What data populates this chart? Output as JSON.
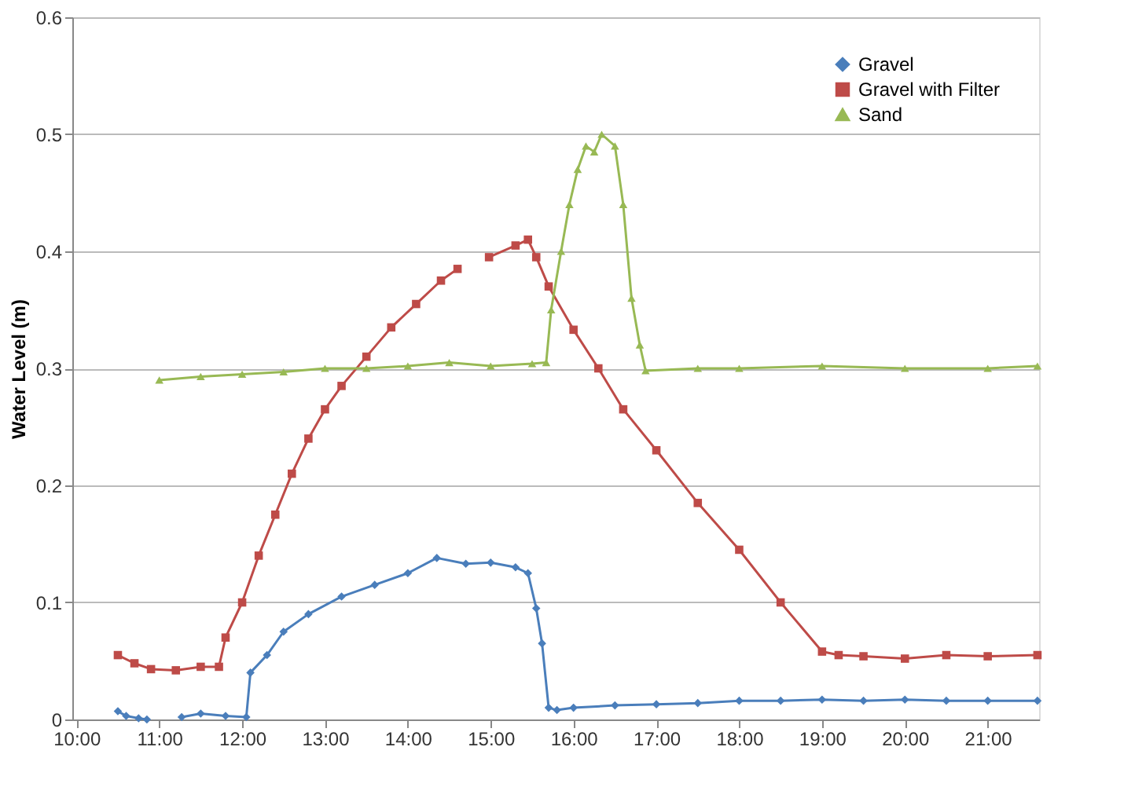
{
  "chart_data": {
    "type": "line",
    "ylabel": "Water Level (m)",
    "xlim": [
      9.95,
      21.62
    ],
    "xticks": [
      {
        "value": 10,
        "label": "10:00"
      },
      {
        "value": 11,
        "label": "11:00"
      },
      {
        "value": 12,
        "label": "12:00"
      },
      {
        "value": 13,
        "label": "13:00"
      },
      {
        "value": 14,
        "label": "14:00"
      },
      {
        "value": 15,
        "label": "15:00"
      },
      {
        "value": 16,
        "label": "16:00"
      },
      {
        "value": 17,
        "label": "17:00"
      },
      {
        "value": 18,
        "label": "18:00"
      },
      {
        "value": 19,
        "label": "19:00"
      },
      {
        "value": 20,
        "label": "20:00"
      },
      {
        "value": 21,
        "label": "21:00"
      }
    ],
    "ylim": [
      0,
      0.6
    ],
    "yticks": [
      0,
      0.1,
      0.2,
      0.3,
      0.4,
      0.5,
      0.6
    ],
    "grid": "y",
    "legend": "top right",
    "line_style": "solid",
    "series": [
      {
        "name": "Gravel",
        "color": "#4a7ebb",
        "marker": "diamond",
        "x": [
          10.5,
          10.6,
          10.75,
          10.85,
          11.05,
          11.27,
          11.5,
          11.8,
          12.05,
          12.1,
          12.3,
          12.5,
          12.8,
          13.2,
          13.6,
          14.0,
          14.35,
          14.7,
          15.0,
          15.3,
          15.45,
          15.55,
          15.62,
          15.7,
          15.8,
          16.0,
          16.5,
          17.0,
          17.5,
          18.0,
          18.5,
          19.0,
          19.5,
          20.0,
          20.5,
          21.0,
          21.6
        ],
        "values": [
          0.007,
          0.003,
          0.001,
          0.0,
          null,
          0.002,
          0.005,
          0.003,
          0.002,
          0.04,
          0.055,
          0.075,
          0.09,
          0.105,
          0.115,
          0.125,
          0.138,
          0.133,
          0.134,
          0.13,
          0.125,
          0.095,
          0.065,
          0.01,
          0.008,
          0.01,
          0.012,
          0.013,
          0.014,
          0.016,
          0.016,
          0.017,
          0.016,
          0.017,
          0.016,
          0.016,
          0.016
        ]
      },
      {
        "name": "Gravel with Filter",
        "color": "#be4b48",
        "marker": "square",
        "x": [
          10.5,
          10.7,
          10.9,
          11.2,
          11.5,
          11.72,
          11.8,
          12.0,
          12.2,
          12.4,
          12.6,
          12.8,
          13.0,
          13.2,
          13.5,
          13.8,
          14.1,
          14.4,
          14.6,
          14.8,
          14.98,
          15.3,
          15.45,
          15.55,
          15.7,
          16.0,
          16.3,
          16.6,
          17.0,
          17.5,
          18.0,
          18.5,
          19.0,
          19.2,
          19.5,
          20.0,
          20.5,
          21.0,
          21.6
        ],
        "values": [
          0.055,
          0.048,
          0.043,
          0.042,
          0.045,
          0.045,
          0.07,
          0.1,
          0.14,
          0.175,
          0.21,
          0.24,
          0.265,
          0.285,
          0.31,
          0.335,
          0.355,
          0.375,
          0.385,
          null,
          0.395,
          0.405,
          0.41,
          0.395,
          0.37,
          0.333,
          0.3,
          0.265,
          0.23,
          0.185,
          0.145,
          0.1,
          0.058,
          0.055,
          0.054,
          0.052,
          0.055,
          0.054,
          0.055
        ]
      },
      {
        "name": "Sand",
        "color": "#98b954",
        "marker": "triangle",
        "x": [
          11.0,
          11.5,
          12.0,
          12.5,
          13.0,
          13.5,
          14.0,
          14.5,
          15.0,
          15.5,
          15.67,
          15.73,
          15.85,
          15.95,
          16.05,
          16.15,
          16.25,
          16.34,
          16.5,
          16.6,
          16.7,
          16.8,
          16.87,
          17.5,
          18.0,
          19.0,
          20.0,
          21.0,
          21.6
        ],
        "values": [
          0.29,
          0.293,
          0.295,
          0.297,
          0.3,
          0.3,
          0.302,
          0.305,
          0.302,
          0.304,
          0.305,
          0.35,
          0.4,
          0.44,
          0.47,
          0.49,
          0.485,
          0.5,
          0.49,
          0.44,
          0.36,
          0.32,
          0.298,
          0.3,
          0.3,
          0.302,
          0.3,
          0.3,
          0.302
        ]
      }
    ]
  }
}
